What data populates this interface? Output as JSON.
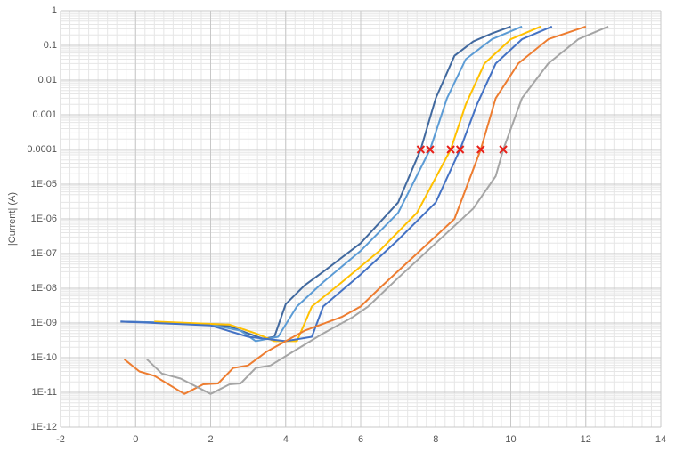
{
  "chart_data": {
    "type": "line",
    "y_label": "|Current| (A)",
    "y_scale": "log",
    "grid": true,
    "minor_grid": true,
    "xlim": [
      -2,
      14
    ],
    "xticks": [
      -2,
      0,
      2,
      4,
      6,
      8,
      10,
      12,
      14
    ],
    "ylim": [
      1e-12,
      1
    ],
    "yticks": [
      1,
      0.1,
      0.01,
      0.001,
      0.0001,
      {
        "value": 1e-05,
        "label": "1E-05"
      },
      {
        "value": 1e-06,
        "label": "1E-06"
      },
      {
        "value": 1e-07,
        "label": "1E-07"
      },
      {
        "value": 1e-08,
        "label": "1E-08"
      },
      {
        "value": 1e-09,
        "label": "1E-09"
      },
      {
        "value": 1e-10,
        "label": "1E-10"
      },
      {
        "value": 1e-11,
        "label": "1E-11"
      },
      {
        "value": 1e-12,
        "label": "1E-12"
      }
    ],
    "series": [
      {
        "color": "#41699f",
        "x": [
          -0.4,
          0.5,
          1.5,
          2.5,
          3.0,
          3.4,
          3.7,
          4.0,
          4.5,
          5.0,
          6.0,
          7.0,
          7.6,
          8.0,
          8.5,
          9.0,
          9.5,
          10.0
        ],
        "values": [
          1.1e-09,
          1.05e-09,
          9.5e-10,
          8e-10,
          5e-10,
          3.5e-10,
          4e-10,
          3.5e-09,
          1.2e-08,
          3e-08,
          2e-07,
          3e-06,
          0.0001,
          0.003,
          0.05,
          0.13,
          0.22,
          0.35
        ]
      },
      {
        "color": "#5b9bd5",
        "x": [
          -0.4,
          1.0,
          2.0,
          2.8,
          3.2,
          3.8,
          4.3,
          5.0,
          6.0,
          7.0,
          7.85,
          8.3,
          8.8,
          9.5,
          10.3
        ],
        "values": [
          1.1e-09,
          1e-09,
          9e-10,
          6e-10,
          3e-10,
          4e-10,
          3e-09,
          1.5e-08,
          1.2e-07,
          1.5e-06,
          0.0001,
          0.003,
          0.04,
          0.15,
          0.35
        ]
      },
      {
        "color": "#ffc000",
        "x": [
          0.5,
          2.5,
          3.2,
          3.7,
          4.3,
          4.7,
          5.5,
          6.5,
          7.5,
          8.4,
          8.8,
          9.3,
          10.0,
          10.8
        ],
        "values": [
          1.1e-09,
          9e-10,
          5e-10,
          3e-10,
          3e-10,
          3e-09,
          1.5e-08,
          1.2e-07,
          1.5e-06,
          0.0001,
          0.002,
          0.03,
          0.15,
          0.35
        ]
      },
      {
        "color": "#4472c4",
        "x": [
          -0.4,
          1.0,
          2.0,
          3.0,
          4.0,
          4.7,
          5.0,
          6.0,
          7.0,
          8.0,
          8.65,
          9.1,
          9.6,
          10.3,
          11.1
        ],
        "values": [
          1.1e-09,
          9.5e-10,
          8.5e-10,
          4e-10,
          3e-10,
          4e-10,
          3e-09,
          2.5e-08,
          2.5e-07,
          3e-06,
          0.0001,
          0.002,
          0.03,
          0.15,
          0.35
        ]
      },
      {
        "color": "#ed7d31",
        "x": [
          -0.3,
          0.1,
          0.5,
          1.3,
          1.8,
          2.2,
          2.6,
          3.0,
          3.5,
          4.0,
          4.5,
          5.5,
          6.0,
          6.5,
          7.5,
          8.5,
          9.2,
          9.6,
          10.2,
          11.0,
          12.0
        ],
        "values": [
          9e-11,
          4e-11,
          3e-11,
          9e-12,
          1.7e-11,
          1.8e-11,
          5e-11,
          6e-11,
          1.5e-10,
          3e-10,
          6e-10,
          1.5e-09,
          3e-09,
          1e-08,
          1e-07,
          1e-06,
          0.0001,
          0.003,
          0.03,
          0.15,
          0.35
        ]
      },
      {
        "color": "#a5a5a5",
        "x": [
          0.3,
          0.7,
          1.2,
          2.0,
          2.5,
          2.8,
          3.2,
          3.6,
          4.2,
          5.0,
          5.8,
          6.2,
          7.0,
          8.0,
          9.0,
          9.6,
          9.8,
          10.3,
          11.0,
          11.8,
          12.6
        ],
        "values": [
          9e-11,
          3.5e-11,
          2.5e-11,
          9e-12,
          1.7e-11,
          1.8e-11,
          5e-11,
          6e-11,
          1.5e-10,
          5e-10,
          1.5e-09,
          3e-09,
          2e-08,
          2e-07,
          2e-06,
          1.7e-05,
          0.0001,
          0.003,
          0.03,
          0.15,
          0.35
        ]
      },
      {
        "type": "scatter",
        "marker": "x",
        "color": "#e8211a",
        "x": [
          7.6,
          7.85,
          8.4,
          8.65,
          9.2,
          9.8
        ],
        "values": [
          0.0001,
          0.0001,
          0.0001,
          0.0001,
          0.0001,
          0.0001
        ]
      }
    ]
  }
}
